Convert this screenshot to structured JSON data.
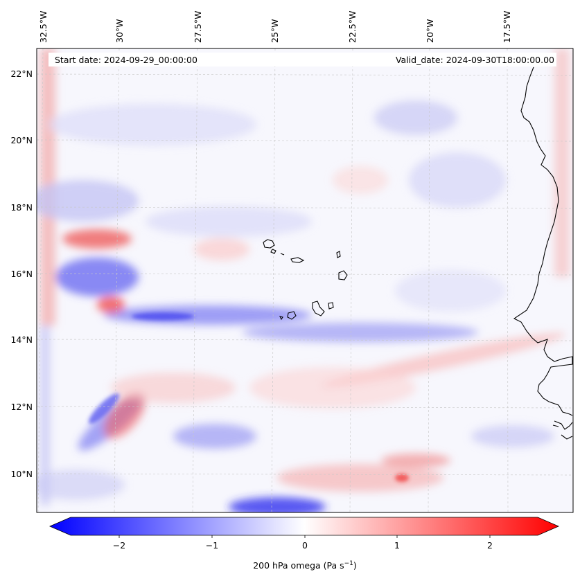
{
  "map": {
    "start_date": "Start date: 2024-09-29_00:00:00",
    "valid_date": "Valid_date: 2024-09-30T18:00:00.00",
    "lon_labels": [
      "32.5°W",
      "30°W",
      "27.5°W",
      "25°W",
      "22.5°W",
      "20°W",
      "17.5°W"
    ],
    "lat_labels": [
      "22°N",
      "20°N",
      "18°N",
      "16°N",
      "14°N",
      "12°N",
      "10°N"
    ],
    "colorbar": {
      "ticks": [
        "−2",
        "−1",
        "0",
        "1",
        "2"
      ],
      "label": "200 hPa omega (Pa s",
      "label_sup": "−1",
      "label_close": ")",
      "colors": {
        "neg": "#0000ff",
        "mid": "#ffffff",
        "pos": "#ff0000"
      }
    }
  }
}
